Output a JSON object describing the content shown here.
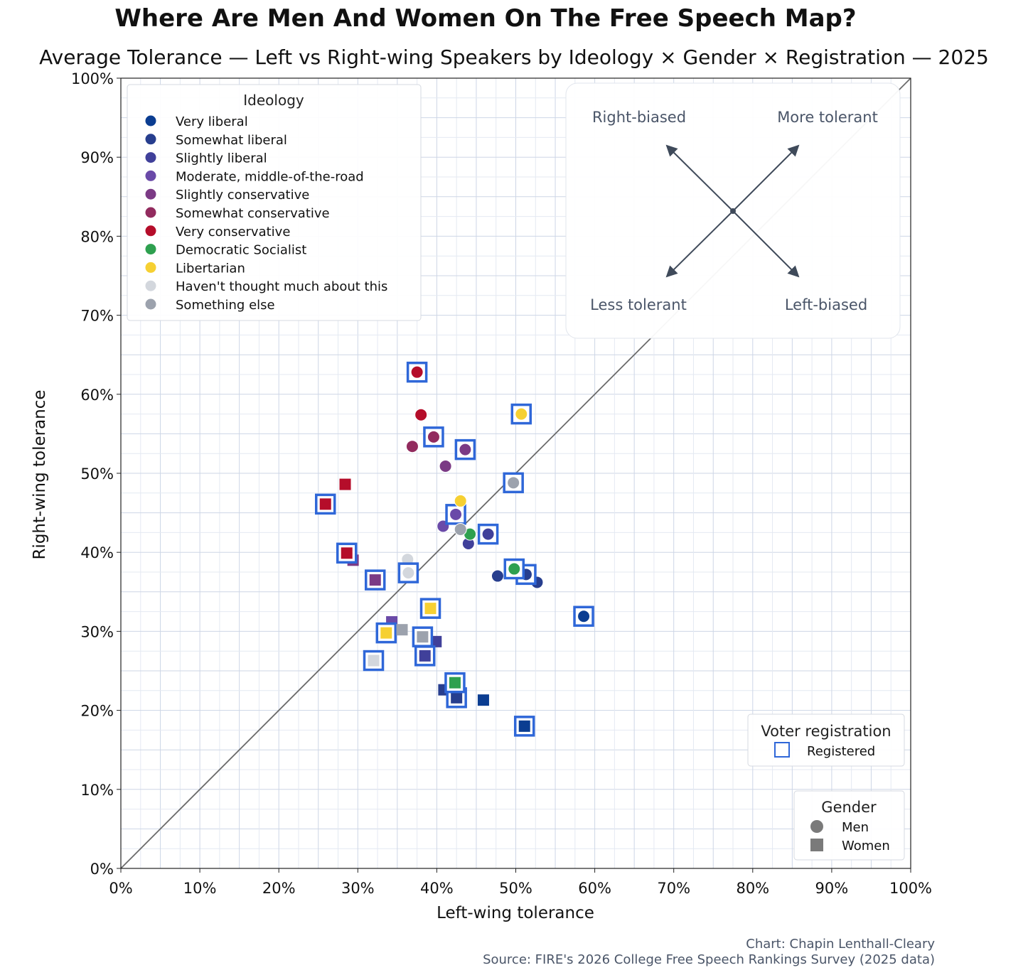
{
  "chart_data": {
    "type": "scatter",
    "title": "Where Are Men And Women On The Free Speech Map?",
    "subtitle": "Average Tolerance — Left vs Right-wing Speakers by Ideology × Gender × Registration — 2025",
    "xlabel": "Left-wing tolerance",
    "ylabel": "Right-wing tolerance",
    "xlim": [
      0,
      100
    ],
    "ylim": [
      0,
      100
    ],
    "x_ticks": [
      "0%",
      "10%",
      "20%",
      "30%",
      "40%",
      "50%",
      "60%",
      "70%",
      "80%",
      "90%",
      "100%"
    ],
    "y_ticks": [
      "0%",
      "10%",
      "20%",
      "30%",
      "40%",
      "50%",
      "60%",
      "70%",
      "80%",
      "90%",
      "100%"
    ],
    "grid": true,
    "diagonal_reference": true,
    "ideology_legend": {
      "title": "Ideology",
      "entries": [
        {
          "label": "Very liberal",
          "color": "#0b3d91"
        },
        {
          "label": "Somewhat liberal",
          "color": "#273e8e"
        },
        {
          "label": "Slightly liberal",
          "color": "#40409a"
        },
        {
          "label": "Moderate, middle-of-the-road",
          "color": "#6a4aa8"
        },
        {
          "label": "Slightly conservative",
          "color": "#7b3a85"
        },
        {
          "label": "Somewhat conservative",
          "color": "#922b5e"
        },
        {
          "label": "Very conservative",
          "color": "#b50d2a"
        },
        {
          "label": "Democratic Socialist",
          "color": "#2ea04f"
        },
        {
          "label": "Libertarian",
          "color": "#f6d032"
        },
        {
          "label": "Haven't thought much about this",
          "color": "#d3d7dd"
        },
        {
          "label": "Something else",
          "color": "#9ca2ad"
        }
      ]
    },
    "quadrant_guide": {
      "top_left": "Right-biased",
      "top_right": "More tolerant",
      "bottom_left": "Less tolerant",
      "bottom_right": "Left-biased"
    },
    "registration_legend": {
      "title": "Voter registration",
      "entry": "Registered",
      "color": "#2f67d8"
    },
    "gender_legend": {
      "title": "Gender",
      "men": "Men",
      "women": "Women",
      "color": "#7a7a7a"
    },
    "points": [
      {
        "ideology": "Very liberal",
        "gender": "Men",
        "registered": true,
        "x": 58.6,
        "y": 31.9
      },
      {
        "ideology": "Very liberal",
        "gender": "Women",
        "registered": true,
        "x": 51.1,
        "y": 18.0
      },
      {
        "ideology": "Very liberal",
        "gender": "Women",
        "registered": false,
        "x": 45.9,
        "y": 21.3
      },
      {
        "ideology": "Somewhat liberal",
        "gender": "Men",
        "registered": false,
        "x": 47.7,
        "y": 37.0
      },
      {
        "ideology": "Somewhat liberal",
        "gender": "Men",
        "registered": false,
        "x": 52.7,
        "y": 36.2
      },
      {
        "ideology": "Somewhat liberal",
        "gender": "Men",
        "registered": true,
        "x": 51.3,
        "y": 37.2
      },
      {
        "ideology": "Somewhat liberal",
        "gender": "Women",
        "registered": false,
        "x": 40.9,
        "y": 22.6
      },
      {
        "ideology": "Somewhat liberal",
        "gender": "Women",
        "registered": true,
        "x": 42.5,
        "y": 21.6
      },
      {
        "ideology": "Slightly liberal",
        "gender": "Men",
        "registered": false,
        "x": 44.0,
        "y": 41.1
      },
      {
        "ideology": "Slightly liberal",
        "gender": "Men",
        "registered": true,
        "x": 46.5,
        "y": 42.3
      },
      {
        "ideology": "Slightly liberal",
        "gender": "Women",
        "registered": false,
        "x": 39.9,
        "y": 28.7
      },
      {
        "ideology": "Slightly liberal",
        "gender": "Women",
        "registered": true,
        "x": 38.5,
        "y": 26.9
      },
      {
        "ideology": "Moderate, middle-of-the-road",
        "gender": "Men",
        "registered": false,
        "x": 40.8,
        "y": 43.3
      },
      {
        "ideology": "Moderate, middle-of-the-road",
        "gender": "Men",
        "registered": true,
        "x": 42.4,
        "y": 44.8
      },
      {
        "ideology": "Moderate, middle-of-the-road",
        "gender": "Women",
        "registered": false,
        "x": 34.3,
        "y": 31.2
      },
      {
        "ideology": "Slightly conservative",
        "gender": "Men",
        "registered": false,
        "x": 41.1,
        "y": 50.9
      },
      {
        "ideology": "Slightly conservative",
        "gender": "Men",
        "registered": true,
        "x": 43.6,
        "y": 53.0
      },
      {
        "ideology": "Slightly conservative",
        "gender": "Women",
        "registered": false,
        "x": 29.4,
        "y": 39.0
      },
      {
        "ideology": "Slightly conservative",
        "gender": "Women",
        "registered": true,
        "x": 32.2,
        "y": 36.5
      },
      {
        "ideology": "Somewhat conservative",
        "gender": "Men",
        "registered": false,
        "x": 36.9,
        "y": 53.4
      },
      {
        "ideology": "Somewhat conservative",
        "gender": "Men",
        "registered": true,
        "x": 39.6,
        "y": 54.6
      },
      {
        "ideology": "Very conservative",
        "gender": "Men",
        "registered": true,
        "x": 37.5,
        "y": 62.8
      },
      {
        "ideology": "Very conservative",
        "gender": "Men",
        "registered": false,
        "x": 38.0,
        "y": 57.4
      },
      {
        "ideology": "Very conservative",
        "gender": "Women",
        "registered": false,
        "x": 28.4,
        "y": 48.6
      },
      {
        "ideology": "Very conservative",
        "gender": "Women",
        "registered": true,
        "x": 25.9,
        "y": 46.1
      },
      {
        "ideology": "Very conservative",
        "gender": "Women",
        "registered": true,
        "x": 28.6,
        "y": 39.9
      },
      {
        "ideology": "Democratic Socialist",
        "gender": "Men",
        "registered": false,
        "x": 44.2,
        "y": 42.3
      },
      {
        "ideology": "Democratic Socialist",
        "gender": "Men",
        "registered": true,
        "x": 49.8,
        "y": 37.9
      },
      {
        "ideology": "Democratic Socialist",
        "gender": "Women",
        "registered": true,
        "x": 42.3,
        "y": 23.5
      },
      {
        "ideology": "Libertarian",
        "gender": "Men",
        "registered": true,
        "x": 50.7,
        "y": 57.5
      },
      {
        "ideology": "Libertarian",
        "gender": "Men",
        "registered": false,
        "x": 43.0,
        "y": 46.5
      },
      {
        "ideology": "Libertarian",
        "gender": "Women",
        "registered": true,
        "x": 39.2,
        "y": 32.9
      },
      {
        "ideology": "Libertarian",
        "gender": "Women",
        "registered": true,
        "x": 33.6,
        "y": 29.8
      },
      {
        "ideology": "Haven't thought much about this",
        "gender": "Men",
        "registered": false,
        "x": 36.3,
        "y": 39.1
      },
      {
        "ideology": "Haven't thought much about this",
        "gender": "Men",
        "registered": true,
        "x": 36.4,
        "y": 37.4
      },
      {
        "ideology": "Haven't thought much about this",
        "gender": "Women",
        "registered": true,
        "x": 32.0,
        "y": 26.3
      },
      {
        "ideology": "Something else",
        "gender": "Men",
        "registered": false,
        "x": 43.0,
        "y": 42.9
      },
      {
        "ideology": "Something else",
        "gender": "Men",
        "registered": true,
        "x": 49.7,
        "y": 48.8
      },
      {
        "ideology": "Something else",
        "gender": "Women",
        "registered": false,
        "x": 35.6,
        "y": 30.2
      },
      {
        "ideology": "Something else",
        "gender": "Women",
        "registered": true,
        "x": 38.2,
        "y": 29.3
      }
    ]
  },
  "footer": {
    "credit": "Chart: Chapin Lenthall-Cleary",
    "source": "Source: FIRE's 2026 College Free Speech Rankings Survey (2025 data)"
  }
}
